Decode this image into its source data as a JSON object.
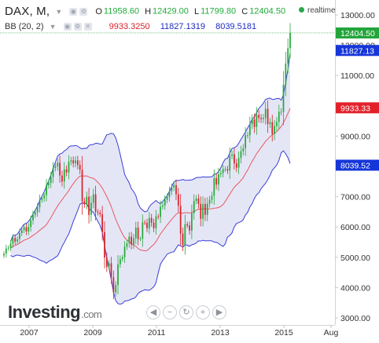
{
  "header": {
    "symbol": "DAX, M,",
    "ohlc": {
      "o_label": "O",
      "o": "11958.60",
      "h_label": "H",
      "h": "12429.00",
      "l_label": "L",
      "l": "11799.80",
      "c_label": "C",
      "c": "12404.50"
    },
    "indicator": {
      "name": "BB (20, 2)",
      "middle": "9933.3250",
      "upper": "11827.1319",
      "lower": "8039.5181"
    },
    "realtime": "realtime"
  },
  "colors": {
    "up_candle": "#27a83b",
    "down_candle": "#d8242b",
    "basis": "#e8595e",
    "band": "#3a3fd6",
    "band_fill": "#e4e6f6",
    "price_tag": "#22a53a",
    "upper_tag": "#1536d8",
    "mid_tag": "#e2222b",
    "lower_tag": "#1536d8"
  },
  "chart_data": {
    "type": "candlestick",
    "title": "DAX, M,",
    "y_ticks": [
      "13000.00",
      "12000.00",
      "11000.00",
      "10000.00",
      "9000.00",
      "8000.00",
      "7000.00",
      "6000.00",
      "5000.00",
      "4000.00",
      "3000.00"
    ],
    "x_ticks": [
      "2007",
      "2009",
      "2011",
      "2013",
      "2015",
      "Aug"
    ],
    "ylim": [
      2850,
      13300
    ],
    "price_tags": [
      {
        "label": "12404.50",
        "value": 12404.5,
        "color": "#22a53a"
      },
      {
        "label": "11827.13",
        "value": 11827.13,
        "color": "#1536d8"
      },
      {
        "label": "9933.33",
        "value": 9933.33,
        "color": "#e2222b"
      },
      {
        "label": "8039.52",
        "value": 8039.52,
        "color": "#1536d8"
      }
    ],
    "closes": [
      5120,
      5290,
      5320,
      5450,
      5640,
      5520,
      5600,
      5800,
      5900,
      5990,
      5850,
      6000,
      6220,
      6400,
      6480,
      6650,
      6900,
      6950,
      7050,
      7380,
      7450,
      7650,
      7950,
      8000,
      8120,
      7700,
      7500,
      7900,
      7800,
      8150,
      8200,
      8100,
      8200,
      8050,
      7890,
      6850,
      6750,
      7000,
      6400,
      6800,
      7080,
      6500,
      6470,
      6420,
      5830,
      4990,
      4680,
      4800,
      4340,
      3840,
      4080,
      4770,
      4940,
      5000,
      5350,
      5460,
      5680,
      5420,
      5630,
      5980,
      5600,
      5610,
      6150,
      6140,
      5960,
      6300,
      6140,
      5960,
      6350,
      6330,
      6670,
      6710,
      6900,
      6990,
      7180,
      7300,
      7380,
      7080,
      6700,
      5780,
      5400,
      6090,
      6050,
      5880,
      6460,
      6860,
      6940,
      6760,
      6270,
      6760,
      6400,
      6770,
      6900,
      7030,
      7610,
      7400,
      7740,
      7780,
      7910,
      7910,
      7860,
      8350,
      8400,
      8100,
      7960,
      8280,
      8500,
      8600,
      9030,
      9030,
      9400,
      9550,
      9300,
      9700,
      9600,
      9560,
      9600,
      9900,
      9400,
      9460,
      9070,
      9330,
      9470,
      9800,
      9800,
      10700,
      11400,
      11900,
      12404.5
    ]
  },
  "footer": {
    "brand": "Investing",
    "brand_suffix": ".com",
    "nav_icons": [
      "scroll-left-icon",
      "zoom-out-icon",
      "reset-icon",
      "zoom-in-icon",
      "scroll-right-icon"
    ]
  }
}
